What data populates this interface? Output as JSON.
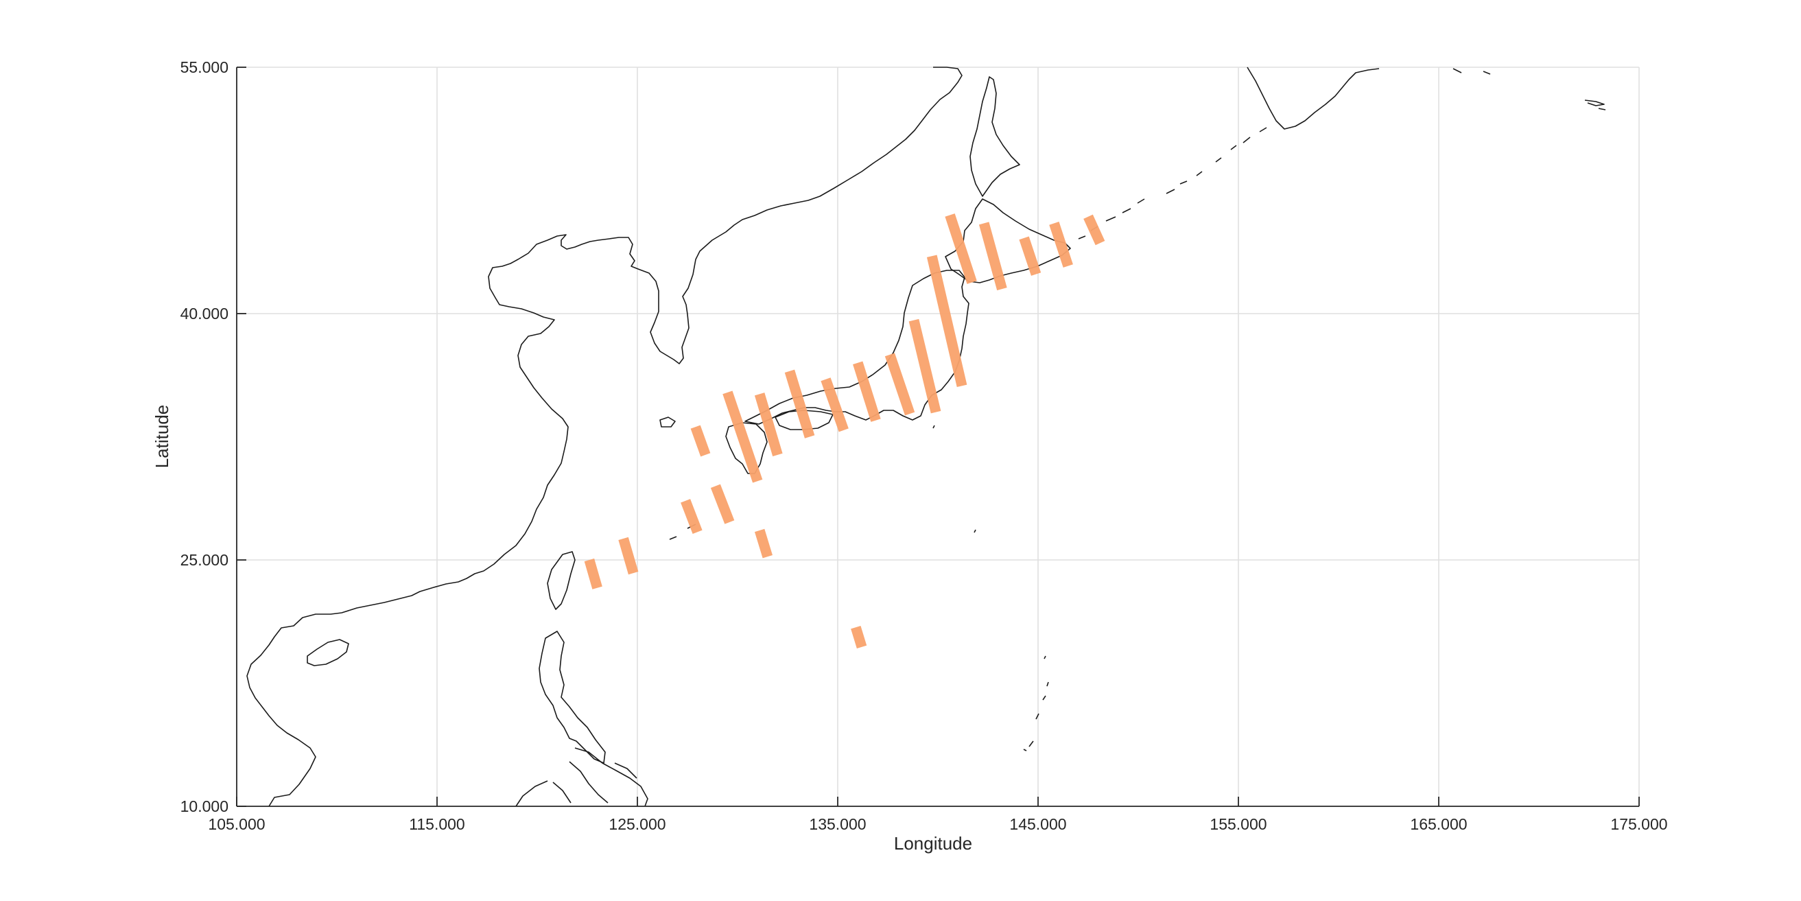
{
  "chart_data": {
    "type": "scatter",
    "subtype": "map-swaths",
    "xlabel": "Longitude",
    "ylabel": "Latitude",
    "xlim": [
      105,
      175
    ],
    "ylim": [
      10,
      55
    ],
    "xticks": [
      105,
      115,
      125,
      135,
      145,
      155,
      165,
      175
    ],
    "yticks": [
      10,
      25,
      40,
      55
    ],
    "xtick_labels": [
      "105.000",
      "115.000",
      "125.000",
      "135.000",
      "145.000",
      "155.000",
      "165.000",
      "175.000"
    ],
    "ytick_labels": [
      "10.000",
      "25.000",
      "40.000",
      "55.000"
    ],
    "grid": true,
    "basemap": "coastlines",
    "swath_color": "#f9a26c",
    "series": [
      {
        "segments": [
          {
            "lon": [
              122.6,
              123.0
            ],
            "lat": [
              25.0,
              23.3
            ]
          },
          {
            "lon": [
              124.3,
              124.8
            ],
            "lat": [
              26.3,
              24.2
            ]
          },
          {
            "lon": [
              127.4,
              128.0
            ],
            "lat": [
              28.6,
              26.7
            ]
          },
          {
            "lon": [
              127.9,
              128.4
            ],
            "lat": [
              33.1,
              31.4
            ]
          },
          {
            "lon": [
              128.9,
              129.6
            ],
            "lat": [
              29.5,
              27.3
            ]
          },
          {
            "lon": [
              129.5,
              131.0
            ],
            "lat": [
              35.2,
              29.8
            ]
          },
          {
            "lon": [
              131.1,
              131.5
            ],
            "lat": [
              26.8,
              25.2
            ]
          },
          {
            "lon": [
              131.1,
              132.0
            ],
            "lat": [
              35.1,
              31.4
            ]
          },
          {
            "lon": [
              132.6,
              133.6
            ],
            "lat": [
              36.5,
              32.5
            ]
          },
          {
            "lon": [
              134.4,
              135.3
            ],
            "lat": [
              36.0,
              32.9
            ]
          },
          {
            "lon": [
              135.9,
              136.2
            ],
            "lat": [
              20.9,
              19.7
            ]
          },
          {
            "lon": [
              136.0,
              136.9
            ],
            "lat": [
              37.0,
              33.5
            ]
          },
          {
            "lon": [
              137.6,
              138.6
            ],
            "lat": [
              37.5,
              33.9
            ]
          },
          {
            "lon": [
              138.8,
              139.9
            ],
            "lat": [
              39.6,
              34.0
            ]
          },
          {
            "lon": [
              139.7,
              141.2
            ],
            "lat": [
              43.5,
              35.6
            ]
          },
          {
            "lon": [
              140.6,
              141.7
            ],
            "lat": [
              46.0,
              41.9
            ]
          },
          {
            "lon": [
              142.3,
              143.2
            ],
            "lat": [
              45.5,
              41.5
            ]
          },
          {
            "lon": [
              144.3,
              144.9
            ],
            "lat": [
              44.6,
              42.4
            ]
          },
          {
            "lon": [
              145.8,
              146.5
            ],
            "lat": [
              45.5,
              42.9
            ]
          },
          {
            "lon": [
              147.5,
              148.1
            ],
            "lat": [
              45.9,
              44.3
            ]
          }
        ]
      }
    ]
  }
}
